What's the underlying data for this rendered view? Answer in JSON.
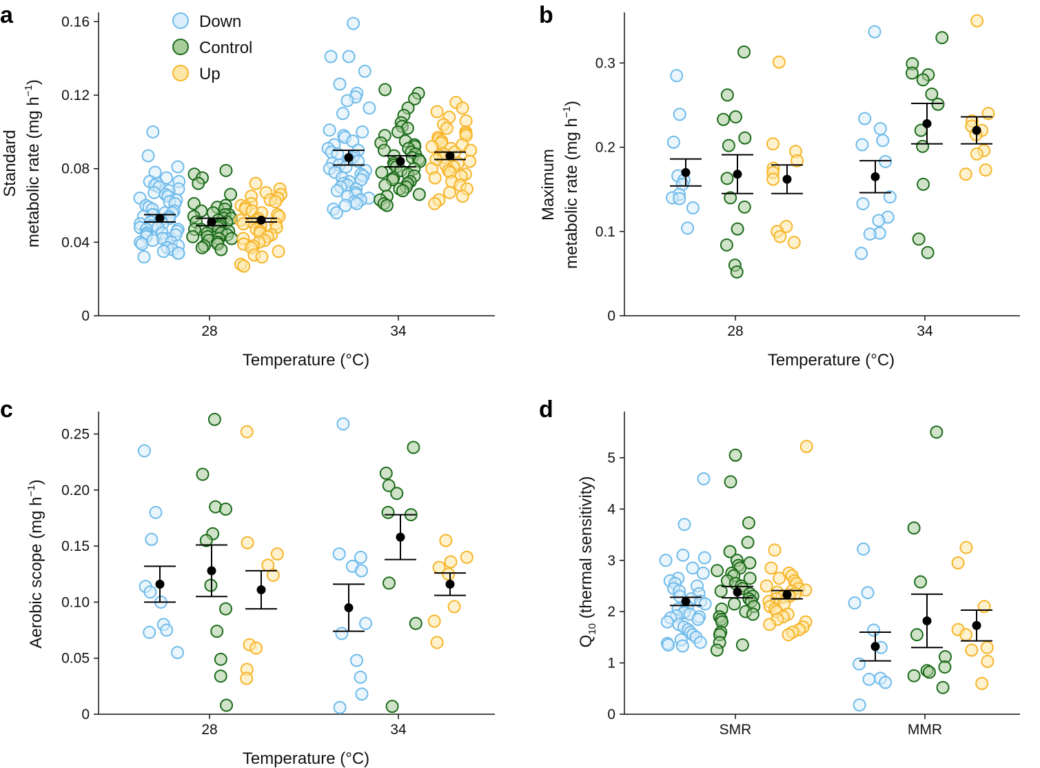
{
  "colors": {
    "down_stroke": "#6fbbea",
    "down_fill": "#d9edfa",
    "control_stroke": "#1a6b1a",
    "control_fill": "#a9cc9b",
    "up_stroke": "#f7b52a",
    "up_fill": "#fde7a6",
    "mean": "#000000"
  },
  "legend": {
    "items": [
      "Down",
      "Control",
      "Up"
    ]
  },
  "chart_data": [
    {
      "panel": "a",
      "type": "scatter",
      "ylabel_line1": "Standard",
      "ylabel_line2": "metabolic rate (mg h",
      "ylabel_sup": "−1",
      "ylabel_end": ")",
      "xlabel": "Temperature (°C)",
      "categories": [
        "28",
        "34"
      ],
      "ylim": [
        0,
        0.165
      ],
      "yticks": [
        "0",
        "0.04",
        "0.08",
        "0.12",
        "0.16"
      ],
      "ytick_values": [
        0,
        0.04,
        0.08,
        0.12,
        0.16
      ],
      "series": [
        {
          "name": "Down",
          "group": [
            {
              "mean": 0.053,
              "err": 0.002,
              "values": [
                0.1,
                0.087,
                0.081,
                0.078,
                0.075,
                0.073,
                0.073,
                0.072,
                0.071,
                0.07,
                0.069,
                0.068,
                0.067,
                0.066,
                0.065,
                0.064,
                0.063,
                0.062,
                0.061,
                0.06,
                0.059,
                0.058,
                0.057,
                0.056,
                0.056,
                0.055,
                0.055,
                0.054,
                0.054,
                0.053,
                0.052,
                0.052,
                0.051,
                0.05,
                0.05,
                0.049,
                0.049,
                0.048,
                0.048,
                0.047,
                0.047,
                0.046,
                0.045,
                0.045,
                0.044,
                0.044,
                0.043,
                0.042,
                0.042,
                0.041,
                0.04,
                0.04,
                0.039,
                0.038,
                0.037,
                0.036,
                0.035,
                0.034,
                0.034,
                0.032
              ]
            },
            {
              "mean": 0.086,
              "err": 0.004,
              "values": [
                0.159,
                0.141,
                0.141,
                0.133,
                0.126,
                0.121,
                0.119,
                0.117,
                0.113,
                0.11,
                0.101,
                0.1,
                0.098,
                0.097,
                0.095,
                0.093,
                0.091,
                0.09,
                0.089,
                0.088,
                0.087,
                0.086,
                0.085,
                0.084,
                0.083,
                0.082,
                0.081,
                0.08,
                0.079,
                0.078,
                0.077,
                0.076,
                0.075,
                0.074,
                0.073,
                0.072,
                0.071,
                0.07,
                0.069,
                0.068,
                0.067,
                0.066,
                0.065,
                0.064,
                0.063,
                0.062,
                0.061,
                0.06,
                0.058,
                0.056
              ]
            }
          ]
        },
        {
          "name": "Control",
          "group": [
            {
              "mean": 0.051,
              "err": 0.002,
              "values": [
                0.079,
                0.077,
                0.075,
                0.072,
                0.066,
                0.061,
                0.06,
                0.059,
                0.058,
                0.057,
                0.056,
                0.055,
                0.055,
                0.054,
                0.053,
                0.053,
                0.052,
                0.051,
                0.051,
                0.05,
                0.049,
                0.049,
                0.048,
                0.047,
                0.047,
                0.046,
                0.045,
                0.045,
                0.044,
                0.043,
                0.043,
                0.042,
                0.042,
                0.041,
                0.04,
                0.039,
                0.038,
                0.037,
                0.036
              ]
            },
            {
              "mean": 0.084,
              "err": 0.003,
              "values": [
                0.123,
                0.121,
                0.118,
                0.113,
                0.109,
                0.105,
                0.103,
                0.102,
                0.1,
                0.098,
                0.095,
                0.094,
                0.093,
                0.092,
                0.091,
                0.09,
                0.089,
                0.088,
                0.087,
                0.086,
                0.085,
                0.084,
                0.083,
                0.082,
                0.081,
                0.08,
                0.079,
                0.078,
                0.077,
                0.076,
                0.075,
                0.074,
                0.073,
                0.072,
                0.071,
                0.07,
                0.069,
                0.068,
                0.066,
                0.065,
                0.063,
                0.061,
                0.06
              ]
            }
          ]
        },
        {
          "name": "Up",
          "group": [
            {
              "mean": 0.052,
              "err": 0.001,
              "values": [
                0.072,
                0.069,
                0.067,
                0.066,
                0.065,
                0.064,
                0.063,
                0.062,
                0.061,
                0.06,
                0.059,
                0.058,
                0.057,
                0.056,
                0.055,
                0.054,
                0.053,
                0.052,
                0.052,
                0.051,
                0.05,
                0.05,
                0.049,
                0.048,
                0.047,
                0.046,
                0.045,
                0.044,
                0.043,
                0.042,
                0.041,
                0.04,
                0.039,
                0.038,
                0.037,
                0.035,
                0.033,
                0.032,
                0.028,
                0.027
              ]
            },
            {
              "mean": 0.087,
              "err": 0.002,
              "values": [
                0.116,
                0.113,
                0.111,
                0.108,
                0.106,
                0.104,
                0.102,
                0.1,
                0.099,
                0.098,
                0.097,
                0.096,
                0.095,
                0.094,
                0.093,
                0.092,
                0.091,
                0.09,
                0.089,
                0.088,
                0.087,
                0.086,
                0.085,
                0.084,
                0.083,
                0.082,
                0.081,
                0.08,
                0.079,
                0.078,
                0.077,
                0.076,
                0.075,
                0.073,
                0.071,
                0.069,
                0.067,
                0.065,
                0.063,
                0.061
              ]
            }
          ]
        }
      ]
    },
    {
      "panel": "b",
      "type": "scatter",
      "ylabel_line1": "Maximum",
      "ylabel_line2": "metabolic rate (mg h",
      "ylabel_sup": "−1",
      "ylabel_end": ")",
      "xlabel": "Temperature (°C)",
      "categories": [
        "28",
        "34"
      ],
      "ylim": [
        0,
        0.36
      ],
      "yticks": [
        "0",
        "0.1",
        "0.2",
        "0.3"
      ],
      "ytick_values": [
        0,
        0.1,
        0.2,
        0.3
      ],
      "series": [
        {
          "name": "Down",
          "group": [
            {
              "mean": 0.17,
              "err": 0.016,
              "values": [
                0.285,
                0.239,
                0.206,
                0.166,
                0.161,
                0.156,
                0.144,
                0.14,
                0.139,
                0.128,
                0.104
              ]
            },
            {
              "mean": 0.165,
              "err": 0.019,
              "values": [
                0.337,
                0.234,
                0.222,
                0.208,
                0.203,
                0.183,
                0.141,
                0.133,
                0.117,
                0.113,
                0.098,
                0.097,
                0.074
              ]
            }
          ]
        },
        {
          "name": "Control",
          "group": [
            {
              "mean": 0.168,
              "err": 0.023,
              "values": [
                0.313,
                0.262,
                0.236,
                0.233,
                0.211,
                0.202,
                0.163,
                0.14,
                0.129,
                0.103,
                0.084,
                0.06,
                0.052
              ]
            },
            {
              "mean": 0.228,
              "err": 0.024,
              "values": [
                0.33,
                0.299,
                0.288,
                0.286,
                0.28,
                0.263,
                0.251,
                0.22,
                0.201,
                0.156,
                0.091,
                0.075
              ]
            }
          ]
        },
        {
          "name": "Up",
          "group": [
            {
              "mean": 0.162,
              "err": 0.017,
              "values": [
                0.301,
                0.204,
                0.195,
                0.184,
                0.175,
                0.17,
                0.162,
                0.106,
                0.1,
                0.094,
                0.087
              ]
            },
            {
              "mean": 0.22,
              "err": 0.016,
              "values": [
                0.35,
                0.24,
                0.231,
                0.225,
                0.22,
                0.215,
                0.196,
                0.192,
                0.173,
                0.168
              ]
            }
          ]
        }
      ]
    },
    {
      "panel": "c",
      "type": "scatter",
      "ylabel_line1": "",
      "ylabel_line2": "Aerobic scope (mg h",
      "ylabel_sup": "−1",
      "ylabel_end": ")",
      "xlabel": "Temperature (°C)",
      "categories": [
        "28",
        "34"
      ],
      "ylim": [
        0,
        0.27
      ],
      "yticks": [
        "0",
        "0.05",
        "0.10",
        "0.15",
        "0.20",
        "0.25"
      ],
      "ytick_values": [
        0,
        0.05,
        0.1,
        0.15,
        0.2,
        0.25
      ],
      "series": [
        {
          "name": "Down",
          "group": [
            {
              "mean": 0.116,
              "err": 0.016,
              "values": [
                0.235,
                0.18,
                0.156,
                0.114,
                0.109,
                0.1,
                0.08,
                0.075,
                0.073,
                0.055
              ]
            },
            {
              "mean": 0.095,
              "err": 0.021,
              "values": [
                0.259,
                0.143,
                0.14,
                0.132,
                0.128,
                0.081,
                0.072,
                0.048,
                0.033,
                0.018,
                0.006
              ]
            }
          ]
        },
        {
          "name": "Control",
          "group": [
            {
              "mean": 0.128,
              "err": 0.023,
              "values": [
                0.263,
                0.214,
                0.185,
                0.183,
                0.161,
                0.155,
                0.115,
                0.094,
                0.074,
                0.049,
                0.034,
                0.008
              ]
            },
            {
              "mean": 0.158,
              "err": 0.02,
              "values": [
                0.238,
                0.215,
                0.204,
                0.197,
                0.18,
                0.178,
                0.117,
                0.081,
                0.007
              ]
            }
          ]
        },
        {
          "name": "Up",
          "group": [
            {
              "mean": 0.111,
              "err": 0.017,
              "values": [
                0.252,
                0.153,
                0.143,
                0.133,
                0.124,
                0.062,
                0.059,
                0.04,
                0.032
              ]
            },
            {
              "mean": 0.116,
              "err": 0.01,
              "values": [
                0.155,
                0.14,
                0.136,
                0.131,
                0.125,
                0.096,
                0.083,
                0.064
              ]
            }
          ]
        }
      ]
    },
    {
      "panel": "d",
      "type": "scatter",
      "ylabel_line1": "",
      "ylabel_line2": "Q",
      "ylabel_sub": "10",
      "ylabel_end": " (thermal sensitivity)",
      "xlabel": "",
      "categories": [
        "SMR",
        "MMR"
      ],
      "ylim": [
        0,
        5.9
      ],
      "yticks": [
        "0",
        "1",
        "2",
        "3",
        "4",
        "5"
      ],
      "ytick_values": [
        0,
        1,
        2,
        3,
        4,
        5
      ],
      "series": [
        {
          "name": "Down",
          "group": [
            {
              "mean": 2.2,
              "err": 0.08,
              "values": [
                4.59,
                3.7,
                3.1,
                3.05,
                3.0,
                2.85,
                2.75,
                2.65,
                2.6,
                2.55,
                2.5,
                2.45,
                2.4,
                2.35,
                2.3,
                2.25,
                2.2,
                2.15,
                2.1,
                2.05,
                2.0,
                1.98,
                1.95,
                1.92,
                1.9,
                1.88,
                1.85,
                1.8,
                1.75,
                1.7,
                1.65,
                1.6,
                1.55,
                1.5,
                1.45,
                1.4,
                1.38,
                1.35,
                1.33
              ]
            },
            {
              "mean": 1.32,
              "err": 0.28,
              "values": [
                3.22,
                2.37,
                2.17,
                1.64,
                1.3,
                0.98,
                0.7,
                0.68,
                0.62,
                0.18
              ]
            }
          ]
        },
        {
          "name": "Control",
          "group": [
            {
              "mean": 2.38,
              "err": 0.11,
              "values": [
                5.05,
                4.53,
                3.73,
                3.35,
                3.17,
                3.0,
                2.95,
                2.9,
                2.85,
                2.8,
                2.75,
                2.7,
                2.65,
                2.6,
                2.55,
                2.5,
                2.45,
                2.4,
                2.35,
                2.3,
                2.25,
                2.2,
                2.15,
                2.1,
                2.05,
                2.0,
                1.95,
                1.9,
                1.85,
                1.8,
                1.6,
                1.55,
                1.4,
                1.35,
                1.25
              ]
            },
            {
              "mean": 1.82,
              "err": 0.52,
              "values": [
                5.5,
                3.63,
                2.58,
                1.55,
                1.12,
                0.92,
                0.85,
                0.82,
                0.75,
                0.52
              ]
            }
          ]
        },
        {
          "name": "Up",
          "group": [
            {
              "mean": 2.33,
              "err": 0.08,
              "values": [
                5.22,
                3.2,
                2.85,
                2.75,
                2.7,
                2.65,
                2.6,
                2.55,
                2.5,
                2.45,
                2.42,
                2.4,
                2.38,
                2.35,
                2.32,
                2.3,
                2.28,
                2.25,
                2.2,
                2.15,
                2.1,
                2.05,
                2.0,
                1.95,
                1.9,
                1.85,
                1.8,
                1.75,
                1.7,
                1.65,
                1.6,
                1.55
              ]
            },
            {
              "mean": 1.73,
              "err": 0.3,
              "values": [
                3.25,
                2.95,
                2.1,
                1.65,
                1.55,
                1.3,
                1.25,
                1.03,
                0.6
              ]
            }
          ]
        }
      ]
    }
  ]
}
